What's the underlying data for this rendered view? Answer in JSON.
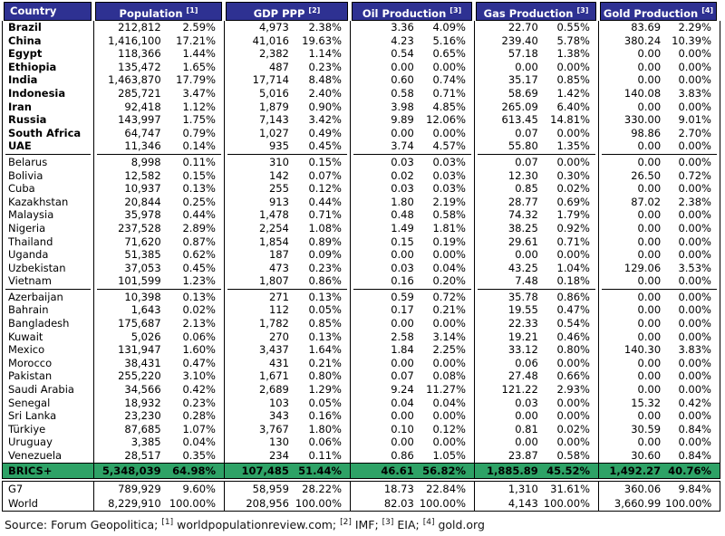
{
  "colors": {
    "header_bg": "#2E3192",
    "header_text": "#FFFFFF",
    "total_row_bg": "#2EA266",
    "border": "#000000",
    "body_text": "#000000"
  },
  "chart_data": {
    "type": "table",
    "columns": [
      {
        "label": "Country",
        "sup": ""
      },
      {
        "label": "Population",
        "sup": "[1]"
      },
      {
        "label": "GDP PPP",
        "sup": "[2]"
      },
      {
        "label": "Oil Production",
        "sup": "[3]"
      },
      {
        "label": "Gas Production",
        "sup": "[3]"
      },
      {
        "label": "Gold Production",
        "sup": "[4]"
      }
    ],
    "sections": [
      {
        "id": "brics-members",
        "bold_country": true,
        "rows": [
          {
            "country": "Brazil",
            "values": [
              [
                "212,812",
                "2.59%"
              ],
              [
                "4,973",
                "2.38%"
              ],
              [
                "3.36",
                "4.09%"
              ],
              [
                "22.70",
                "0.55%"
              ],
              [
                "83.69",
                "2.29%"
              ]
            ]
          },
          {
            "country": "China",
            "values": [
              [
                "1,416,100",
                "17.21%"
              ],
              [
                "41,016",
                "19.63%"
              ],
              [
                "4.23",
                "5.16%"
              ],
              [
                "239.40",
                "5.78%"
              ],
              [
                "380.24",
                "10.39%"
              ]
            ]
          },
          {
            "country": "Egypt",
            "values": [
              [
                "118,366",
                "1.44%"
              ],
              [
                "2,382",
                "1.14%"
              ],
              [
                "0.54",
                "0.65%"
              ],
              [
                "57.18",
                "1.38%"
              ],
              [
                "0.00",
                "0.00%"
              ]
            ]
          },
          {
            "country": "Ethiopia",
            "values": [
              [
                "135,472",
                "1.65%"
              ],
              [
                "487",
                "0.23%"
              ],
              [
                "0.00",
                "0.00%"
              ],
              [
                "0.00",
                "0.00%"
              ],
              [
                "0.00",
                "0.00%"
              ]
            ]
          },
          {
            "country": "India",
            "values": [
              [
                "1,463,870",
                "17.79%"
              ],
              [
                "17,714",
                "8.48%"
              ],
              [
                "0.60",
                "0.74%"
              ],
              [
                "35.17",
                "0.85%"
              ],
              [
                "0.00",
                "0.00%"
              ]
            ]
          },
          {
            "country": "Indonesia",
            "values": [
              [
                "285,721",
                "3.47%"
              ],
              [
                "5,016",
                "2.40%"
              ],
              [
                "0.58",
                "0.71%"
              ],
              [
                "58.69",
                "1.42%"
              ],
              [
                "140.08",
                "3.83%"
              ]
            ]
          },
          {
            "country": "Iran",
            "values": [
              [
                "92,418",
                "1.12%"
              ],
              [
                "1,879",
                "0.90%"
              ],
              [
                "3.98",
                "4.85%"
              ],
              [
                "265.09",
                "6.40%"
              ],
              [
                "0.00",
                "0.00%"
              ]
            ]
          },
          {
            "country": "Russia",
            "values": [
              [
                "143,997",
                "1.75%"
              ],
              [
                "7,143",
                "3.42%"
              ],
              [
                "9.89",
                "12.06%"
              ],
              [
                "613.45",
                "14.81%"
              ],
              [
                "330.00",
                "9.01%"
              ]
            ]
          },
          {
            "country": "South Africa",
            "values": [
              [
                "64,747",
                "0.79%"
              ],
              [
                "1,027",
                "0.49%"
              ],
              [
                "0.00",
                "0.00%"
              ],
              [
                "0.07",
                "0.00%"
              ],
              [
                "98.86",
                "2.70%"
              ]
            ]
          },
          {
            "country": "UAE",
            "values": [
              [
                "11,346",
                "0.14%"
              ],
              [
                "935",
                "0.45%"
              ],
              [
                "3.74",
                "4.57%"
              ],
              [
                "55.80",
                "1.35%"
              ],
              [
                "0.00",
                "0.00%"
              ]
            ]
          }
        ]
      },
      {
        "id": "partner-states",
        "bold_country": false,
        "rows": [
          {
            "country": "Belarus",
            "values": [
              [
                "8,998",
                "0.11%"
              ],
              [
                "310",
                "0.15%"
              ],
              [
                "0.03",
                "0.03%"
              ],
              [
                "0.07",
                "0.00%"
              ],
              [
                "0.00",
                "0.00%"
              ]
            ]
          },
          {
            "country": "Bolivia",
            "values": [
              [
                "12,582",
                "0.15%"
              ],
              [
                "142",
                "0.07%"
              ],
              [
                "0.02",
                "0.03%"
              ],
              [
                "12.30",
                "0.30%"
              ],
              [
                "26.50",
                "0.72%"
              ]
            ]
          },
          {
            "country": "Cuba",
            "values": [
              [
                "10,937",
                "0.13%"
              ],
              [
                "255",
                "0.12%"
              ],
              [
                "0.03",
                "0.03%"
              ],
              [
                "0.85",
                "0.02%"
              ],
              [
                "0.00",
                "0.00%"
              ]
            ]
          },
          {
            "country": "Kazakhstan",
            "values": [
              [
                "20,844",
                "0.25%"
              ],
              [
                "913",
                "0.44%"
              ],
              [
                "1.80",
                "2.19%"
              ],
              [
                "28.77",
                "0.69%"
              ],
              [
                "87.02",
                "2.38%"
              ]
            ]
          },
          {
            "country": "Malaysia",
            "values": [
              [
                "35,978",
                "0.44%"
              ],
              [
                "1,478",
                "0.71%"
              ],
              [
                "0.48",
                "0.58%"
              ],
              [
                "74.32",
                "1.79%"
              ],
              [
                "0.00",
                "0.00%"
              ]
            ]
          },
          {
            "country": "Nigeria",
            "values": [
              [
                "237,528",
                "2.89%"
              ],
              [
                "2,254",
                "1.08%"
              ],
              [
                "1.49",
                "1.81%"
              ],
              [
                "38.25",
                "0.92%"
              ],
              [
                "0.00",
                "0.00%"
              ]
            ]
          },
          {
            "country": "Thailand",
            "values": [
              [
                "71,620",
                "0.87%"
              ],
              [
                "1,854",
                "0.89%"
              ],
              [
                "0.15",
                "0.19%"
              ],
              [
                "29.61",
                "0.71%"
              ],
              [
                "0.00",
                "0.00%"
              ]
            ]
          },
          {
            "country": "Uganda",
            "values": [
              [
                "51,385",
                "0.62%"
              ],
              [
                "187",
                "0.09%"
              ],
              [
                "0.00",
                "0.00%"
              ],
              [
                "0.00",
                "0.00%"
              ],
              [
                "0.00",
                "0.00%"
              ]
            ]
          },
          {
            "country": "Uzbekistan",
            "values": [
              [
                "37,053",
                "0.45%"
              ],
              [
                "473",
                "0.23%"
              ],
              [
                "0.03",
                "0.04%"
              ],
              [
                "43.25",
                "1.04%"
              ],
              [
                "129.06",
                "3.53%"
              ]
            ]
          },
          {
            "country": "Vietnam",
            "values": [
              [
                "101,599",
                "1.23%"
              ],
              [
                "1,807",
                "0.86%"
              ],
              [
                "0.16",
                "0.20%"
              ],
              [
                "7.48",
                "0.18%"
              ],
              [
                "0.00",
                "0.00%"
              ]
            ]
          }
        ]
      },
      {
        "id": "applicants",
        "bold_country": false,
        "rows": [
          {
            "country": "Azerbaijan",
            "values": [
              [
                "10,398",
                "0.13%"
              ],
              [
                "271",
                "0.13%"
              ],
              [
                "0.59",
                "0.72%"
              ],
              [
                "35.78",
                "0.86%"
              ],
              [
                "0.00",
                "0.00%"
              ]
            ]
          },
          {
            "country": "Bahrain",
            "values": [
              [
                "1,643",
                "0.02%"
              ],
              [
                "112",
                "0.05%"
              ],
              [
                "0.17",
                "0.21%"
              ],
              [
                "19.55",
                "0.47%"
              ],
              [
                "0.00",
                "0.00%"
              ]
            ]
          },
          {
            "country": "Bangladesh",
            "values": [
              [
                "175,687",
                "2.13%"
              ],
              [
                "1,782",
                "0.85%"
              ],
              [
                "0.00",
                "0.00%"
              ],
              [
                "22.33",
                "0.54%"
              ],
              [
                "0.00",
                "0.00%"
              ]
            ]
          },
          {
            "country": "Kuwait",
            "values": [
              [
                "5,026",
                "0.06%"
              ],
              [
                "270",
                "0.13%"
              ],
              [
                "2.58",
                "3.14%"
              ],
              [
                "19.21",
                "0.46%"
              ],
              [
                "0.00",
                "0.00%"
              ]
            ]
          },
          {
            "country": "Mexico",
            "values": [
              [
                "131,947",
                "1.60%"
              ],
              [
                "3,437",
                "1.64%"
              ],
              [
                "1.84",
                "2.25%"
              ],
              [
                "33.12",
                "0.80%"
              ],
              [
                "140.30",
                "3.83%"
              ]
            ]
          },
          {
            "country": "Morocco",
            "values": [
              [
                "38,431",
                "0.47%"
              ],
              [
                "431",
                "0.21%"
              ],
              [
                "0.00",
                "0.00%"
              ],
              [
                "0.06",
                "0.00%"
              ],
              [
                "0.00",
                "0.00%"
              ]
            ]
          },
          {
            "country": "Pakistan",
            "values": [
              [
                "255,220",
                "3.10%"
              ],
              [
                "1,671",
                "0.80%"
              ],
              [
                "0.07",
                "0.08%"
              ],
              [
                "27.48",
                "0.66%"
              ],
              [
                "0.00",
                "0.00%"
              ]
            ]
          },
          {
            "country": "Saudi Arabia",
            "values": [
              [
                "34,566",
                "0.42%"
              ],
              [
                "2,689",
                "1.29%"
              ],
              [
                "9.24",
                "11.27%"
              ],
              [
                "121.22",
                "2.93%"
              ],
              [
                "0.00",
                "0.00%"
              ]
            ]
          },
          {
            "country": "Senegal",
            "values": [
              [
                "18,932",
                "0.23%"
              ],
              [
                "103",
                "0.05%"
              ],
              [
                "0.04",
                "0.04%"
              ],
              [
                "0.03",
                "0.00%"
              ],
              [
                "15.32",
                "0.42%"
              ]
            ]
          },
          {
            "country": "Sri Lanka",
            "values": [
              [
                "23,230",
                "0.28%"
              ],
              [
                "343",
                "0.16%"
              ],
              [
                "0.00",
                "0.00%"
              ],
              [
                "0.00",
                "0.00%"
              ],
              [
                "0.00",
                "0.00%"
              ]
            ]
          },
          {
            "country": "Türkiye",
            "values": [
              [
                "87,685",
                "1.07%"
              ],
              [
                "3,767",
                "1.80%"
              ],
              [
                "0.10",
                "0.12%"
              ],
              [
                "0.81",
                "0.02%"
              ],
              [
                "30.59",
                "0.84%"
              ]
            ]
          },
          {
            "country": "Uruguay",
            "values": [
              [
                "3,385",
                "0.04%"
              ],
              [
                "130",
                "0.06%"
              ],
              [
                "0.00",
                "0.00%"
              ],
              [
                "0.00",
                "0.00%"
              ],
              [
                "0.00",
                "0.00%"
              ]
            ]
          },
          {
            "country": "Venezuela",
            "values": [
              [
                "28,517",
                "0.35%"
              ],
              [
                "234",
                "0.11%"
              ],
              [
                "0.86",
                "1.05%"
              ],
              [
                "23.87",
                "0.58%"
              ],
              [
                "30.60",
                "0.84%"
              ]
            ]
          }
        ]
      }
    ],
    "total_row": {
      "country": "BRICS+",
      "values": [
        [
          "5,348,039",
          "64.98%"
        ],
        [
          "107,485",
          "51.44%"
        ],
        [
          "46.61",
          "56.82%"
        ],
        [
          "1,885.89",
          "45.52%"
        ],
        [
          "1,492.27",
          "40.76%"
        ]
      ]
    },
    "summary_rows": [
      {
        "country": "G7",
        "values": [
          [
            "789,929",
            "9.60%"
          ],
          [
            "58,959",
            "28.22%"
          ],
          [
            "18.73",
            "22.84%"
          ],
          [
            "1,310",
            "31.61%"
          ],
          [
            "360.06",
            "9.84%"
          ]
        ]
      },
      {
        "country": "World",
        "values": [
          [
            "8,229,910",
            "100.00%"
          ],
          [
            "208,956",
            "100.00%"
          ],
          [
            "82.03",
            "100.00%"
          ],
          [
            "4,143",
            "100.00%"
          ],
          [
            "3,660.99",
            "100.00%"
          ]
        ]
      }
    ],
    "source_note": {
      "parts": [
        {
          "sup": "",
          "text": "Source: Forum Geopolitica; "
        },
        {
          "sup": "[1]",
          "text": " worldpopulationreview.com; "
        },
        {
          "sup": "[2]",
          "text": " IMF; "
        },
        {
          "sup": "[3]",
          "text": " EIA; "
        },
        {
          "sup": "[4]",
          "text": " gold.org"
        }
      ]
    }
  }
}
